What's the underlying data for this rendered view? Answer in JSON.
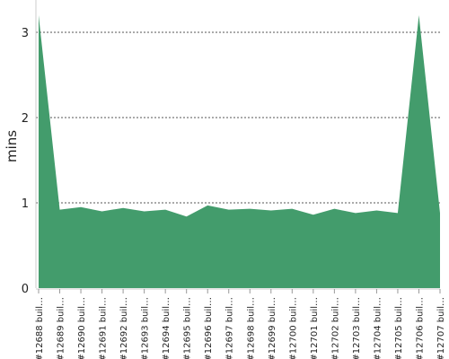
{
  "chart_data": {
    "type": "area",
    "y_label": "mins",
    "categories": [
      "#12688 buil…",
      "#12689 buil…",
      "#12690 buil…",
      "#12691 buil…",
      "#12692 buil…",
      "#12693 buil…",
      "#12694 buil…",
      "#12695 buil…",
      "#12696 buil…",
      "#12697 buil…",
      "#12698 buil…",
      "#12699 buil…",
      "#12700 buil…",
      "#12701 buil…",
      "#12702 buil…",
      "#12703 buil…",
      "#12704 buil…",
      "#12705 buil…",
      "#12706 buil…",
      "#12707 buil…"
    ],
    "values": [
      3.2,
      0.92,
      0.95,
      0.9,
      0.94,
      0.9,
      0.92,
      0.84,
      0.97,
      0.92,
      0.93,
      0.91,
      0.93,
      0.86,
      0.93,
      0.88,
      0.91,
      0.88,
      3.2,
      0.88
    ],
    "color": "#439c6c",
    "ylim": [
      0,
      3.2
    ],
    "yticks": [
      0,
      1,
      2,
      3
    ],
    "grid": true
  }
}
